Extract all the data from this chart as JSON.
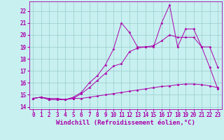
{
  "xlabel": "Windchill (Refroidissement éolien,°C)",
  "bg_color": "#c8f0f0",
  "line_color": "#aa00aa",
  "grid_color": "#99cccc",
  "xlim": [
    -0.5,
    23.5
  ],
  "ylim": [
    13.8,
    22.8
  ],
  "xticks": [
    0,
    1,
    2,
    3,
    4,
    5,
    6,
    7,
    8,
    9,
    10,
    11,
    12,
    13,
    14,
    15,
    16,
    17,
    18,
    19,
    20,
    21,
    22,
    23
  ],
  "yticks": [
    14,
    15,
    16,
    17,
    18,
    19,
    20,
    21,
    22
  ],
  "line1_x": [
    0,
    1,
    2,
    3,
    4,
    5,
    6,
    7,
    8,
    9,
    10,
    11,
    12,
    13,
    14,
    15,
    16,
    17,
    18,
    19,
    20,
    21,
    22,
    23
  ],
  "line1_y": [
    14.7,
    14.8,
    14.7,
    14.7,
    14.6,
    14.7,
    14.7,
    14.8,
    14.9,
    15.0,
    15.1,
    15.2,
    15.3,
    15.4,
    15.5,
    15.6,
    15.7,
    15.75,
    15.85,
    15.9,
    15.9,
    15.85,
    15.75,
    15.6
  ],
  "line2_x": [
    0,
    1,
    2,
    3,
    4,
    5,
    6,
    7,
    8,
    9,
    10,
    11,
    12,
    13,
    14,
    15,
    16,
    17,
    18,
    19,
    20,
    21,
    22,
    23
  ],
  "line2_y": [
    14.7,
    14.8,
    14.6,
    14.6,
    14.6,
    14.7,
    15.1,
    15.6,
    16.2,
    16.8,
    17.4,
    17.6,
    18.6,
    18.9,
    19.0,
    19.1,
    19.5,
    20.0,
    19.8,
    19.8,
    19.8,
    19.0,
    19.0,
    17.3
  ],
  "line3_x": [
    0,
    1,
    2,
    3,
    4,
    5,
    6,
    7,
    8,
    9,
    10,
    11,
    12,
    13,
    14,
    15,
    16,
    17,
    18,
    19,
    20,
    21,
    22,
    23
  ],
  "line3_y": [
    14.7,
    14.8,
    14.6,
    14.6,
    14.6,
    14.8,
    15.2,
    16.0,
    16.6,
    17.5,
    18.8,
    21.0,
    20.2,
    19.0,
    19.0,
    19.0,
    21.0,
    22.5,
    19.0,
    20.5,
    20.5,
    19.0,
    17.3,
    15.5
  ],
  "tick_fontsize": 5.5,
  "xlabel_fontsize": 6.5,
  "marker": "*",
  "markersize": 2.5,
  "linewidth": 0.7
}
